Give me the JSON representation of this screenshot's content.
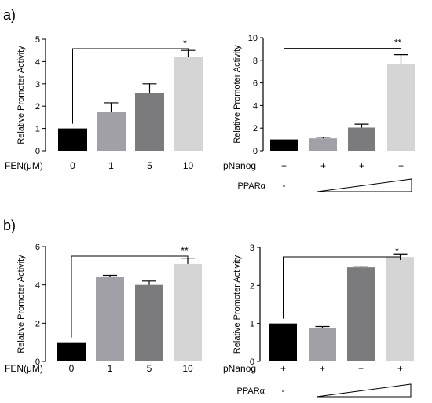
{
  "panel_labels": [
    "a)",
    "b)"
  ],
  "colors": {
    "c1": "#000000",
    "c2": "#a1a0a6",
    "c3": "#7b7b7d",
    "c4": "#d5d5d5"
  },
  "chart_data": [
    {
      "type": "bar",
      "panel": "a)",
      "ylabel": "Relative Promoter Activity",
      "xlabel_left": "FEN(μM)",
      "categories": [
        "0",
        "1",
        "5",
        "10"
      ],
      "values": [
        1.0,
        1.75,
        2.6,
        4.2
      ],
      "errors": [
        0,
        0.4,
        0.4,
        0.3
      ],
      "ylim": [
        0,
        5
      ],
      "yticks": [
        "0",
        "1",
        "2",
        "3",
        "4",
        "5"
      ],
      "significance": "*"
    },
    {
      "type": "bar",
      "panel": "a)",
      "ylabel": "Relative Promoter Activity",
      "xlabel_left": "pNanog",
      "categories": [
        "+",
        "+",
        "+",
        "+"
      ],
      "row2_label": "PPARα",
      "row2_values": [
        "-"
      ],
      "values": [
        1.0,
        1.1,
        2.05,
        7.7
      ],
      "errors": [
        0,
        0.1,
        0.3,
        0.8
      ],
      "ylim": [
        0,
        10
      ],
      "yticks": [
        "0",
        "2",
        "4",
        "6",
        "8",
        "10"
      ],
      "significance": "**"
    },
    {
      "type": "bar",
      "panel": "b)",
      "ylabel": "Relative Promoter Activity",
      "xlabel_left": "FEN(μM)",
      "categories": [
        "0",
        "1",
        "5",
        "10"
      ],
      "values": [
        1.0,
        4.4,
        4.0,
        5.1
      ],
      "errors": [
        0,
        0.1,
        0.2,
        0.3
      ],
      "ylim": [
        0,
        6
      ],
      "yticks": [
        "0",
        "2",
        "4",
        "6"
      ],
      "significance": "**"
    },
    {
      "type": "bar",
      "panel": "b)",
      "ylabel": "Relative Promoter Activity",
      "xlabel_left": "pNanog",
      "categories": [
        "+",
        "+",
        "+",
        "+"
      ],
      "row2_label": "PPARα",
      "row2_values": [
        "-"
      ],
      "values": [
        1.0,
        0.87,
        2.48,
        2.75
      ],
      "errors": [
        0,
        0.05,
        0.03,
        0.08
      ],
      "ylim": [
        0,
        3
      ],
      "yticks": [
        "0",
        "1",
        "2",
        "3"
      ],
      "significance": "*"
    }
  ]
}
